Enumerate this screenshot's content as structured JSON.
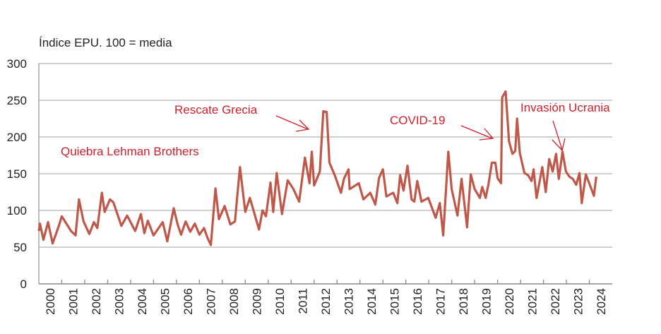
{
  "chart_data": {
    "type": "line",
    "ylabel": "Índice EPU. 100 = media",
    "ylim": [
      0,
      300
    ],
    "yticks": [
      0,
      50,
      100,
      150,
      200,
      250,
      300
    ],
    "xlim": [
      2000,
      2025
    ],
    "xticks": [
      "2000",
      "2001",
      "2002",
      "2003",
      "2004",
      "2005",
      "2006",
      "2007",
      "2008",
      "2009",
      "2010",
      "2011",
      "2012",
      "2013",
      "2014",
      "2015",
      "2016",
      "2017",
      "2018",
      "2019",
      "2020",
      "2021",
      "2022",
      "2023",
      "2024"
    ],
    "grid": "horizontal",
    "line_color": "#c0584a",
    "annotation_color": "#d0202a",
    "annotations": [
      {
        "text": "Quiebra Lehman Brothers",
        "arrow": false
      },
      {
        "text": "Rescate Grecia",
        "arrow": true,
        "x": 2012.3,
        "y": 210
      },
      {
        "text": "COVID-19",
        "arrow": true,
        "x": 2020.1,
        "y": 197
      },
      {
        "text": "Invasión Ucrania",
        "arrow": true,
        "x": 2022.8,
        "y": 182
      }
    ],
    "series": [
      {
        "x": [
          2000.0,
          2000.05,
          2000.2,
          2000.4,
          2000.6,
          2000.87,
          2001.0,
          2001.4,
          2001.6,
          2001.75,
          2001.95,
          2002.2,
          2002.4,
          2002.55,
          2002.75,
          2002.87,
          2003.1,
          2003.25,
          2003.6,
          2003.85,
          2004.2,
          2004.45,
          2004.6,
          2004.75,
          2005.0,
          2005.4,
          2005.6,
          2005.88,
          2006.05,
          2006.2,
          2006.4,
          2006.6,
          2006.8,
          2007.0,
          2007.2,
          2007.35,
          2007.5,
          2007.7,
          2007.85,
          2008.1,
          2008.35,
          2008.55,
          2008.77,
          2009.0,
          2009.2,
          2009.6,
          2009.75,
          2009.9,
          2010.1,
          2010.22,
          2010.37,
          2010.6,
          2010.85,
          2011.1,
          2011.35,
          2011.6,
          2011.8,
          2011.9,
          2012.0,
          2012.25,
          2012.4,
          2012.55,
          2012.67,
          2012.9,
          2013.17,
          2013.3,
          2013.5,
          2013.55,
          2013.95,
          2014.15,
          2014.45,
          2014.67,
          2014.83,
          2015.0,
          2015.15,
          2015.45,
          2015.63,
          2015.75,
          2015.9,
          2016.07,
          2016.25,
          2016.37,
          2016.5,
          2016.68,
          2016.98,
          2017.3,
          2017.48,
          2017.63,
          2017.85,
          2018.0,
          2018.25,
          2018.43,
          2018.67,
          2018.83,
          2019.0,
          2019.23,
          2019.33,
          2019.48,
          2019.6,
          2019.75,
          2019.9,
          2020.0,
          2020.15,
          2020.2,
          2020.35,
          2020.5,
          2020.65,
          2020.77,
          2020.85,
          2020.97,
          2021.17,
          2021.33,
          2021.48,
          2021.57,
          2021.7,
          2021.95,
          2022.1,
          2022.25,
          2022.4,
          2022.55,
          2022.67,
          2022.83,
          2022.98,
          2023.13,
          2023.28,
          2023.43,
          2023.57,
          2023.67,
          2023.85,
          2024.2,
          2024.3
        ],
        "y": [
          72,
          82,
          60,
          84,
          55,
          79,
          92,
          72,
          66,
          115,
          85,
          68,
          84,
          76,
          124,
          98,
          115,
          111,
          79,
          93,
          72,
          95,
          69,
          86,
          66,
          84,
          58,
          103,
          81,
          67,
          85,
          71,
          82,
          67,
          76,
          63,
          53,
          130,
          88,
          106,
          81,
          85,
          159,
          98,
          117,
          74,
          100,
          92,
          138,
          98,
          151,
          95,
          141,
          129,
          112,
          172,
          137,
          180,
          134,
          153,
          235,
          234,
          165,
          148,
          124,
          143,
          156,
          129,
          137,
          115,
          124,
          108,
          144,
          156,
          119,
          124,
          110,
          148,
          127,
          161,
          115,
          112,
          140,
          112,
          117,
          90,
          110,
          66,
          180,
          129,
          93,
          143,
          77,
          149,
          129,
          117,
          132,
          117,
          135,
          165,
          165,
          144,
          137,
          254,
          262,
          194,
          177,
          181,
          225,
          178,
          151,
          148,
          140,
          156,
          117,
          159,
          125,
          170,
          153,
          177,
          143,
          180,
          153,
          146,
          143,
          135,
          151,
          110,
          149,
          120,
          146
        ]
      }
    ]
  }
}
